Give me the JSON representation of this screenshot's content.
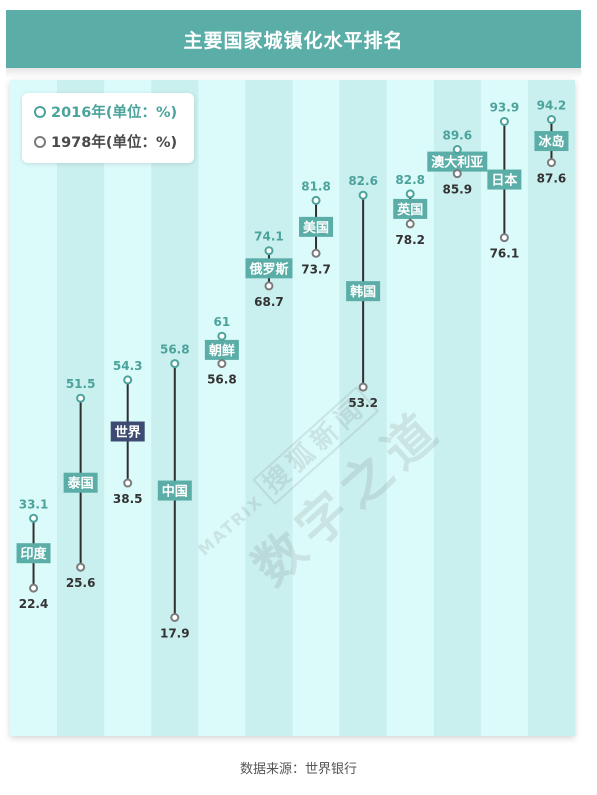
{
  "header": {
    "title": "主要国家城镇化水平排名"
  },
  "legend": {
    "items": [
      {
        "label": "2016年(单位：%)",
        "color": "#4ca39c"
      },
      {
        "label": "1978年(单位：%)",
        "color": "#4a4a4a"
      }
    ]
  },
  "watermark": {
    "en": "MATRIX",
    "source": "搜狐新闻",
    "brand": "数字之道"
  },
  "source": {
    "text": "数据来源：世界银行"
  },
  "chart_data": {
    "type": "dumbbell",
    "title": "主要国家城镇化水平排名",
    "xlabel": "",
    "ylabel": "",
    "categories": [
      "印度",
      "泰国",
      "世界",
      "中国",
      "朝鲜",
      "俄罗斯",
      "美国",
      "韩国",
      "英国",
      "澳大利亚",
      "日本",
      "冰岛"
    ],
    "highlight": "世界",
    "series": [
      {
        "name": "2016年(单位：%)",
        "values": [
          33.1,
          51.5,
          54.3,
          56.8,
          61,
          74.1,
          81.8,
          82.6,
          82.8,
          89.6,
          93.9,
          94.2
        ],
        "color": "#4ca39c"
      },
      {
        "name": "1978年(单位：%)",
        "values": [
          22.4,
          25.6,
          38.5,
          17.9,
          56.8,
          68.7,
          73.7,
          53.2,
          78.2,
          85.9,
          76.1,
          87.6
        ],
        "color": "#7b7b7b"
      }
    ],
    "grid": false,
    "legend_position": "top-left"
  }
}
